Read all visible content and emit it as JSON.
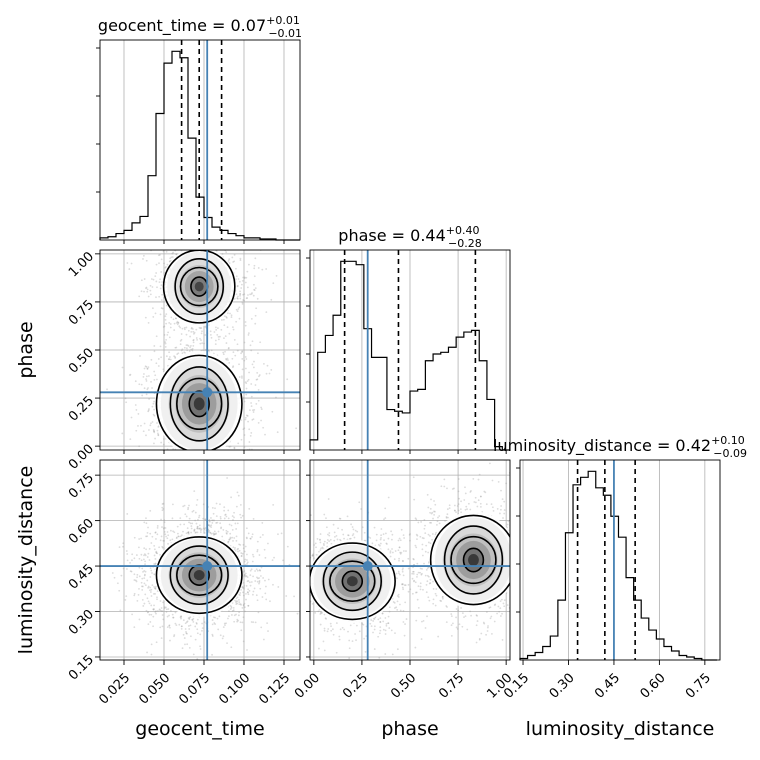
{
  "chart_data": {
    "type": "corner",
    "parameters": [
      "geocent_time",
      "phase",
      "luminosity_distance"
    ],
    "ranges": {
      "geocent_time": [
        0.01,
        0.135
      ],
      "phase": [
        -0.02,
        1.02
      ],
      "luminosity_distance": [
        0.14,
        0.8
      ]
    },
    "ticks": {
      "geocent_time": [
        0.025,
        0.05,
        0.075,
        0.1,
        0.125
      ],
      "phase": [
        0.0,
        0.25,
        0.5,
        0.75,
        1.0
      ],
      "luminosity_distance": [
        0.15,
        0.3,
        0.45,
        0.6,
        0.75
      ]
    },
    "tick_labels": {
      "geocent_time": [
        "0.025",
        "0.050",
        "0.075",
        "0.100",
        "0.125"
      ],
      "phase": [
        "0.00",
        "0.25",
        "0.50",
        "0.75",
        "1.00"
      ],
      "luminosity_distance": [
        "0.15",
        "0.30",
        "0.45",
        "0.60",
        "0.75"
      ]
    },
    "titles": {
      "geocent_time": {
        "prefix": "geocent_time = 0.07",
        "plus": "+0.01",
        "minus": "−0.01"
      },
      "phase": {
        "prefix": "phase = 0.44",
        "plus": "+0.40",
        "minus": "−0.28"
      },
      "luminosity_distance": {
        "prefix": "luminosity_distance = 0.42",
        "plus": "+0.10",
        "minus": "−0.09"
      }
    },
    "axis_labels": {
      "x": [
        "geocent_time",
        "phase",
        "luminosity_distance"
      ],
      "y": [
        "phase",
        "luminosity_distance"
      ]
    },
    "truths": {
      "geocent_time": 0.077,
      "phase": 0.28,
      "luminosity_distance": 0.45
    },
    "quantiles": {
      "geocent_time": [
        0.061,
        0.072,
        0.086
      ],
      "phase": [
        0.16,
        0.44,
        0.84
      ],
      "luminosity_distance": [
        0.33,
        0.42,
        0.52
      ]
    },
    "histograms": {
      "geocent_time": {
        "edges": [
          0.01,
          0.015,
          0.02,
          0.025,
          0.03,
          0.035,
          0.04,
          0.045,
          0.05,
          0.055,
          0.06,
          0.065,
          0.07,
          0.075,
          0.08,
          0.085,
          0.09,
          0.095,
          0.1,
          0.105,
          0.11,
          0.115,
          0.12,
          0.125,
          0.13,
          0.135
        ],
        "counts": [
          2,
          3,
          6,
          9,
          16,
          22,
          60,
          118,
          165,
          176,
          170,
          95,
          40,
          21,
          12,
          9,
          6,
          4,
          2,
          2,
          1,
          1,
          0,
          0,
          0
        ]
      },
      "phase": {
        "edges": [
          -0.02,
          0.02,
          0.06,
          0.1,
          0.14,
          0.18,
          0.22,
          0.26,
          0.3,
          0.34,
          0.38,
          0.42,
          0.46,
          0.5,
          0.54,
          0.58,
          0.62,
          0.66,
          0.7,
          0.74,
          0.78,
          0.82,
          0.86,
          0.9,
          0.94,
          0.98,
          1.02
        ],
        "counts": [
          6,
          58,
          68,
          80,
          112,
          112,
          110,
          72,
          55,
          55,
          24,
          23,
          22,
          35,
          36,
          53,
          57,
          58,
          61,
          67,
          70,
          71,
          53,
          30,
          2,
          0
        ]
      },
      "luminosity_distance": {
        "edges": [
          0.14,
          0.165,
          0.19,
          0.215,
          0.24,
          0.265,
          0.29,
          0.315,
          0.34,
          0.365,
          0.39,
          0.415,
          0.44,
          0.465,
          0.49,
          0.515,
          0.54,
          0.565,
          0.59,
          0.615,
          0.64,
          0.665,
          0.69,
          0.715,
          0.74,
          0.765,
          0.79
        ],
        "counts": [
          1,
          3,
          5,
          9,
          16,
          40,
          85,
          117,
          122,
          126,
          115,
          110,
          96,
          82,
          55,
          40,
          28,
          20,
          14,
          9,
          6,
          3,
          2,
          1,
          0,
          0
        ]
      }
    },
    "modes": {
      "geocent_time_phase": [
        {
          "x": 0.072,
          "y": 0.22,
          "w": 0.012,
          "h": 0.12,
          "weight": 1.0
        },
        {
          "x": 0.072,
          "y": 0.83,
          "w": 0.01,
          "h": 0.09,
          "weight": 0.8
        }
      ],
      "geocent_time_luminosity_distance": [
        {
          "x": 0.072,
          "y": 0.42,
          "w": 0.012,
          "h": 0.06,
          "weight": 1.0
        }
      ],
      "phase_luminosity_distance": [
        {
          "x": 0.2,
          "y": 0.4,
          "w": 0.1,
          "h": 0.06,
          "weight": 1.0
        },
        {
          "x": 0.83,
          "y": 0.47,
          "w": 0.1,
          "h": 0.07,
          "weight": 0.9
        }
      ]
    },
    "grid": true
  }
}
